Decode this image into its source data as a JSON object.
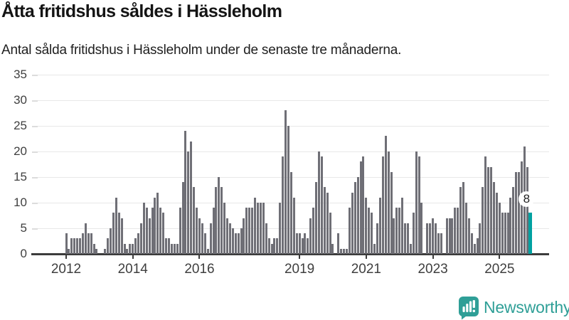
{
  "title": "Åtta fritidshus såldes i Hässleholm",
  "subtitle": "Antal sålda fritidshus i Hässleholm under de senaste tre månaderna.",
  "footer": {
    "brand": "Newsworthy",
    "logo_icon": "bar-chart-speech-bubble-icon"
  },
  "colors": {
    "bar": "#6f6f76",
    "highlight_bar": "#00a1a1",
    "grid": "#e8e8e8",
    "axis": "#3c3c3c",
    "logo": "#2f9f97"
  },
  "chart_data": {
    "type": "bar",
    "title": "Åtta fritidshus såldes i Hässleholm",
    "subtitle": "Antal sålda fritidshus i Hässleholm under de senaste tre månaderna.",
    "x_start": "2012-01",
    "x_interval": "month",
    "ylim": [
      0,
      35
    ],
    "y_ticks": [
      0,
      5,
      10,
      15,
      20,
      25,
      30,
      35
    ],
    "grid": true,
    "legend": "none",
    "x_tick_labels": [
      "2012",
      "2014",
      "2016",
      "2019",
      "2021",
      "2023",
      "2025"
    ],
    "x_tick_month_indices": [
      0,
      24,
      48,
      84,
      108,
      132,
      156
    ],
    "values": [
      4,
      1,
      3,
      3,
      3,
      3,
      4,
      6,
      4,
      4,
      2,
      1,
      0,
      0,
      1,
      3,
      5,
      8,
      11,
      8,
      7,
      2,
      1,
      2,
      2,
      3,
      4,
      6,
      10,
      9,
      7,
      9,
      11,
      12,
      9,
      8,
      3,
      3,
      2,
      2,
      2,
      9,
      14,
      24,
      20,
      22,
      13,
      9,
      7,
      6,
      4,
      1,
      6,
      9,
      13,
      15,
      13,
      10,
      7,
      6,
      5,
      4,
      4,
      5,
      7,
      9,
      9,
      9,
      11,
      10,
      10,
      10,
      6,
      3,
      2,
      3,
      3,
      10,
      19,
      28,
      25,
      16,
      11,
      4,
      4,
      3,
      4,
      3,
      7,
      9,
      14,
      20,
      19,
      13,
      12,
      8,
      2,
      0,
      4,
      1,
      1,
      1,
      9,
      12,
      14,
      15,
      18,
      19,
      11,
      9,
      8,
      2,
      6,
      11,
      19,
      23,
      20,
      16,
      7,
      9,
      9,
      11,
      6,
      6,
      2,
      8,
      20,
      19,
      10,
      0,
      6,
      6,
      7,
      6,
      4,
      4,
      0,
      7,
      7,
      7,
      9,
      9,
      13,
      14,
      10,
      7,
      4,
      2,
      3,
      6,
      13,
      19,
      17,
      17,
      14,
      12,
      10,
      8,
      8,
      8,
      11,
      13,
      16,
      16,
      18,
      21,
      17,
      8
    ],
    "highlight_last": true,
    "last_value_label": "8"
  }
}
